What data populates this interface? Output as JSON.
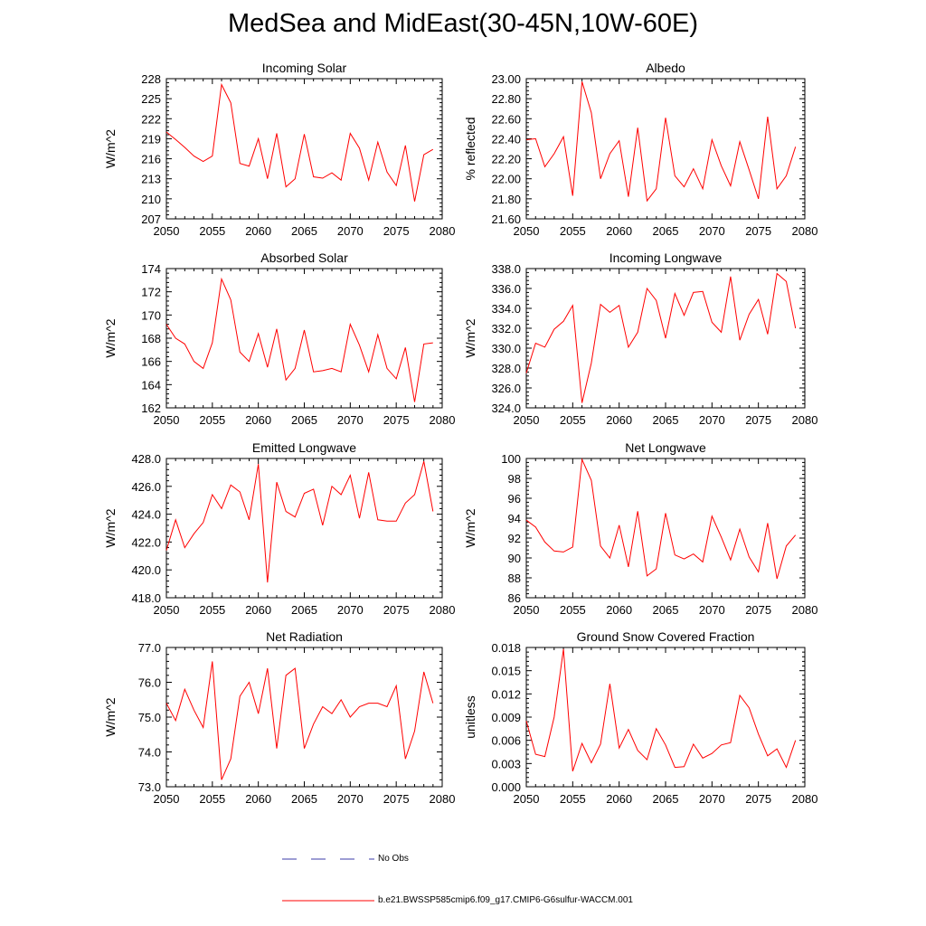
{
  "page": {
    "title": "MedSea and MidEast(30-45N,10W-60E)"
  },
  "legend": {
    "obs_label": "No Obs",
    "obs_color": "#3b3ba8",
    "model_label": "b.e21.BWSSP585cmip6.f09_g17.CMIP6-G6sulfur-WACCM.001",
    "model_color": "#ff0000"
  },
  "chart_data": [
    {
      "type": "line",
      "title": "Incoming Solar",
      "ylabel": "W/m^2",
      "xlim": [
        2050,
        2080
      ],
      "ylim": [
        207,
        228
      ],
      "xticks": [
        "2050",
        "2055",
        "2060",
        "2065",
        "2070",
        "2075",
        "2080"
      ],
      "yticks": [
        "207",
        "210",
        "213",
        "216",
        "219",
        "222",
        "225",
        "228"
      ],
      "series": [
        {
          "x": [
            2050,
            2051,
            2052,
            2053,
            2054,
            2055,
            2056,
            2057,
            2058,
            2059,
            2060,
            2061,
            2062,
            2063,
            2064,
            2065,
            2066,
            2067,
            2068,
            2069,
            2070,
            2071,
            2072,
            2073,
            2074,
            2075,
            2076,
            2077,
            2078,
            2079
          ],
          "values": [
            220.0,
            218.9,
            217.7,
            216.4,
            215.6,
            216.4,
            227.1,
            224.4,
            215.3,
            214.9,
            219.0,
            213.0,
            219.8,
            211.8,
            213.0,
            219.7,
            213.3,
            213.1,
            213.9,
            212.8,
            219.8,
            217.6,
            212.8,
            218.5,
            214.0,
            212.0,
            218.0,
            209.6,
            216.6,
            217.4
          ]
        }
      ]
    },
    {
      "type": "line",
      "title": "Albedo",
      "ylabel": "% reflected",
      "xlim": [
        2050,
        2080
      ],
      "ylim": [
        21.6,
        23.0
      ],
      "xticks": [
        "2050",
        "2055",
        "2060",
        "2065",
        "2070",
        "2075",
        "2080"
      ],
      "yticks": [
        "21.60",
        "21.80",
        "22.00",
        "22.20",
        "22.40",
        "22.60",
        "22.80",
        "23.00"
      ],
      "series": [
        {
          "x": [
            2050,
            2051,
            2052,
            2053,
            2054,
            2055,
            2056,
            2057,
            2058,
            2059,
            2060,
            2061,
            2062,
            2063,
            2064,
            2065,
            2066,
            2067,
            2068,
            2069,
            2070,
            2071,
            2072,
            2073,
            2074,
            2075,
            2076,
            2077,
            2078,
            2079
          ],
          "values": [
            22.39,
            22.4,
            22.12,
            22.25,
            22.42,
            21.83,
            22.97,
            22.66,
            22.0,
            22.25,
            22.38,
            21.82,
            22.51,
            21.78,
            21.9,
            22.61,
            22.03,
            21.92,
            22.1,
            21.9,
            22.39,
            22.13,
            21.93,
            22.37,
            22.09,
            21.8,
            22.62,
            21.9,
            22.03,
            22.32
          ]
        }
      ]
    },
    {
      "type": "line",
      "title": "Absorbed Solar",
      "ylabel": "W/m^2",
      "xlim": [
        2050,
        2080
      ],
      "ylim": [
        162,
        174
      ],
      "xticks": [
        "2050",
        "2055",
        "2060",
        "2065",
        "2070",
        "2075",
        "2080"
      ],
      "yticks": [
        "162",
        "164",
        "166",
        "168",
        "170",
        "172",
        "174"
      ],
      "series": [
        {
          "x": [
            2050,
            2051,
            2052,
            2053,
            2054,
            2055,
            2056,
            2057,
            2058,
            2059,
            2060,
            2061,
            2062,
            2063,
            2064,
            2065,
            2066,
            2067,
            2068,
            2069,
            2070,
            2071,
            2072,
            2073,
            2074,
            2075,
            2076,
            2077,
            2078,
            2079
          ],
          "values": [
            169.2,
            168.0,
            167.5,
            166.0,
            165.4,
            167.6,
            173.1,
            171.3,
            166.8,
            166.0,
            168.4,
            165.5,
            168.8,
            164.4,
            165.4,
            168.7,
            165.1,
            165.2,
            165.4,
            165.1,
            169.2,
            167.4,
            165.1,
            168.3,
            165.4,
            164.5,
            167.2,
            162.5,
            167.5,
            167.6
          ]
        }
      ]
    },
    {
      "type": "line",
      "title": "Incoming Longwave",
      "ylabel": "W/m^2",
      "xlim": [
        2050,
        2080
      ],
      "ylim": [
        324.0,
        338.0
      ],
      "xticks": [
        "2050",
        "2055",
        "2060",
        "2065",
        "2070",
        "2075",
        "2080"
      ],
      "yticks": [
        "324.0",
        "326.0",
        "328.0",
        "330.0",
        "332.0",
        "334.0",
        "336.0",
        "338.0"
      ],
      "series": [
        {
          "x": [
            2050,
            2051,
            2052,
            2053,
            2054,
            2055,
            2056,
            2057,
            2058,
            2059,
            2060,
            2061,
            2062,
            2063,
            2064,
            2065,
            2066,
            2067,
            2068,
            2069,
            2070,
            2071,
            2072,
            2073,
            2074,
            2075,
            2076,
            2077,
            2078,
            2079
          ],
          "values": [
            327.5,
            330.5,
            330.1,
            331.9,
            332.7,
            334.3,
            324.5,
            328.5,
            334.4,
            333.6,
            334.3,
            330.1,
            331.6,
            336.0,
            334.8,
            331.0,
            335.5,
            333.3,
            335.6,
            335.7,
            332.6,
            331.6,
            337.2,
            330.8,
            333.4,
            334.9,
            331.4,
            337.5,
            336.7,
            332.0
          ]
        }
      ]
    },
    {
      "type": "line",
      "title": "Emitted Longwave",
      "ylabel": "W/m^2",
      "xlim": [
        2050,
        2080
      ],
      "ylim": [
        418.0,
        428.0
      ],
      "xticks": [
        "2050",
        "2055",
        "2060",
        "2065",
        "2070",
        "2075",
        "2080"
      ],
      "yticks": [
        "418.0",
        "420.0",
        "422.0",
        "424.0",
        "426.0",
        "428.0"
      ],
      "series": [
        {
          "x": [
            2050,
            2051,
            2052,
            2053,
            2054,
            2055,
            2056,
            2057,
            2058,
            2059,
            2060,
            2061,
            2062,
            2063,
            2064,
            2065,
            2066,
            2067,
            2068,
            2069,
            2070,
            2071,
            2072,
            2073,
            2074,
            2075,
            2076,
            2077,
            2078,
            2079
          ],
          "values": [
            421.4,
            423.6,
            421.6,
            422.6,
            423.4,
            425.4,
            424.4,
            426.1,
            425.6,
            423.6,
            427.6,
            419.1,
            426.3,
            424.2,
            423.8,
            425.5,
            425.8,
            423.2,
            426.0,
            425.4,
            426.8,
            423.7,
            427.0,
            423.6,
            423.5,
            423.5,
            424.8,
            425.4,
            427.8,
            424.2
          ]
        }
      ]
    },
    {
      "type": "line",
      "title": "Net Longwave",
      "ylabel": "W/m^2",
      "xlim": [
        2050,
        2080
      ],
      "ylim": [
        86,
        100
      ],
      "xticks": [
        "2050",
        "2055",
        "2060",
        "2065",
        "2070",
        "2075",
        "2080"
      ],
      "yticks": [
        "86",
        "88",
        "90",
        "92",
        "94",
        "96",
        "98",
        "100"
      ],
      "series": [
        {
          "x": [
            2050,
            2051,
            2052,
            2053,
            2054,
            2055,
            2056,
            2057,
            2058,
            2059,
            2060,
            2061,
            2062,
            2063,
            2064,
            2065,
            2066,
            2067,
            2068,
            2069,
            2070,
            2071,
            2072,
            2073,
            2074,
            2075,
            2076,
            2077,
            2078,
            2079
          ],
          "values": [
            93.8,
            93.1,
            91.6,
            90.7,
            90.6,
            91.1,
            99.9,
            97.8,
            91.2,
            90.0,
            93.3,
            89.1,
            94.7,
            88.2,
            88.9,
            94.5,
            90.3,
            89.9,
            90.4,
            89.6,
            94.2,
            92.1,
            89.8,
            92.9,
            90.1,
            88.6,
            93.5,
            87.9,
            91.2,
            92.3
          ]
        }
      ]
    },
    {
      "type": "line",
      "title": "Net Radiation",
      "ylabel": "W/m^2",
      "xlim": [
        2050,
        2080
      ],
      "ylim": [
        73.0,
        77.0
      ],
      "xticks": [
        "2050",
        "2055",
        "2060",
        "2065",
        "2070",
        "2075",
        "2080"
      ],
      "yticks": [
        "73.0",
        "74.0",
        "75.0",
        "76.0",
        "77.0"
      ],
      "series": [
        {
          "x": [
            2050,
            2051,
            2052,
            2053,
            2054,
            2055,
            2056,
            2057,
            2058,
            2059,
            2060,
            2061,
            2062,
            2063,
            2064,
            2065,
            2066,
            2067,
            2068,
            2069,
            2070,
            2071,
            2072,
            2073,
            2074,
            2075,
            2076,
            2077,
            2078,
            2079
          ],
          "values": [
            75.4,
            74.9,
            75.8,
            75.2,
            74.7,
            76.6,
            73.2,
            73.8,
            75.6,
            76.0,
            75.1,
            76.4,
            74.1,
            76.2,
            76.4,
            74.1,
            74.8,
            75.3,
            75.1,
            75.5,
            75.0,
            75.3,
            75.4,
            75.4,
            75.3,
            75.9,
            73.8,
            74.6,
            76.3,
            75.4
          ]
        }
      ]
    },
    {
      "type": "line",
      "title": "Ground Snow Covered Fraction",
      "ylabel": "unitless",
      "xlim": [
        2050,
        2080
      ],
      "ylim": [
        0.0,
        0.018
      ],
      "xticks": [
        "2050",
        "2055",
        "2060",
        "2065",
        "2070",
        "2075",
        "2080"
      ],
      "yticks": [
        "0.000",
        "0.003",
        "0.006",
        "0.009",
        "0.012",
        "0.015",
        "0.018"
      ],
      "series": [
        {
          "x": [
            2050,
            2051,
            2052,
            2053,
            2054,
            2055,
            2056,
            2057,
            2058,
            2059,
            2060,
            2061,
            2062,
            2063,
            2064,
            2065,
            2066,
            2067,
            2068,
            2069,
            2070,
            2071,
            2072,
            2073,
            2074,
            2075,
            2076,
            2077,
            2078,
            2079
          ],
          "values": [
            0.0085,
            0.0042,
            0.0039,
            0.009,
            0.0178,
            0.002,
            0.0056,
            0.0031,
            0.0055,
            0.0133,
            0.005,
            0.0074,
            0.0047,
            0.0035,
            0.0075,
            0.0054,
            0.0025,
            0.0026,
            0.0055,
            0.0037,
            0.0043,
            0.0054,
            0.0057,
            0.0118,
            0.0102,
            0.0068,
            0.004,
            0.0049,
            0.0025,
            0.006
          ]
        }
      ]
    }
  ]
}
